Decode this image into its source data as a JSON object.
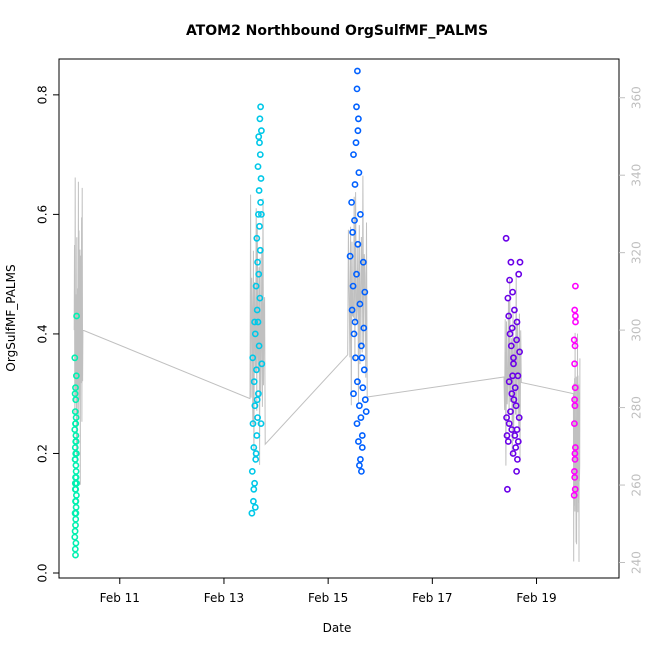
{
  "chart_data": {
    "type": "scatter",
    "title": "ATOM2 Northbound OrgSulfMF_PALMS",
    "xlabel": "Date",
    "ylabel": "OrgSulfMF_PALMS",
    "x_tick_labels": [
      "Feb 11",
      "Feb 13",
      "Feb 15",
      "Feb 17",
      "Feb 19"
    ],
    "x_tick_dates": [
      "2017-02-11",
      "2017-02-13",
      "2017-02-15",
      "2017-02-17",
      "2017-02-19"
    ],
    "xlim": [
      "2017-02-09T20:00",
      "2017-02-20T14:00"
    ],
    "ylim": [
      0,
      0.86
    ],
    "y_ticks": [
      0.0,
      0.2,
      0.4,
      0.6,
      0.8
    ],
    "y_tick_labels": [
      "0.0",
      "0.2",
      "0.4",
      "0.6",
      "0.8"
    ],
    "y2_ticks": [
      240,
      260,
      280,
      300,
      320,
      340,
      360
    ],
    "y2_tick_labels": [
      "240",
      "260",
      "280",
      "300",
      "320",
      "340",
      "360"
    ],
    "y2lim": [
      236,
      370
    ],
    "grid": false,
    "colors": {
      "line": "#c0c0c0",
      "right_axis": "#bfbfbf",
      "cluster_1": "#00ffa0",
      "cluster_2": "#00a0ff",
      "cluster_3": "#0040ff",
      "cluster_4": "#7000ff",
      "cluster_5": "#ff00ff"
    },
    "series": [
      {
        "color": "#00f0b0",
        "gradient_to": "#00ffa0",
        "x_range": [
          "2017-02-10T03:00",
          "2017-02-10T07:00"
        ],
        "points": [
          [
            0.03,
            0.06
          ],
          [
            0.07,
            0.09
          ],
          [
            0.04,
            0.1
          ],
          [
            0.08,
            0.12
          ],
          [
            0.05,
            0.14
          ],
          [
            0.06,
            0.16
          ],
          [
            0.09,
            0.17
          ],
          [
            0.04,
            0.19
          ],
          [
            0.1,
            0.2
          ],
          [
            0.05,
            0.21
          ],
          [
            0.07,
            0.22
          ],
          [
            0.08,
            0.23
          ],
          [
            0.03,
            0.24
          ],
          [
            0.06,
            0.25
          ],
          [
            0.09,
            0.26
          ],
          [
            0.05,
            0.27
          ],
          [
            0.07,
            0.29
          ],
          [
            0.04,
            0.3
          ],
          [
            0.06,
            0.31
          ],
          [
            0.1,
            0.33
          ],
          [
            0.03,
            0.36
          ],
          [
            0.11,
            0.43
          ],
          [
            0.08,
            0.05
          ],
          [
            0.06,
            0.08
          ],
          [
            0.1,
            0.13
          ],
          [
            0.05,
            0.15
          ],
          [
            0.08,
            0.18
          ],
          [
            0.07,
            0.2
          ],
          [
            0.09,
            0.11
          ],
          [
            0.04,
            0.07
          ],
          [
            0.06,
            0.03
          ],
          [
            0.05,
            0.04
          ],
          [
            0.11,
            0.15
          ],
          [
            0.07,
            0.14
          ],
          [
            0.09,
            0.22
          ],
          [
            0.06,
            0.12
          ],
          [
            0.08,
            0.1
          ],
          [
            0.05,
            0.19
          ],
          [
            0.07,
            0.25
          ],
          [
            0.09,
            0.16
          ]
        ]
      },
      {
        "color": "#00c8e8",
        "gradient_to": "#00a0ff",
        "x_range": [
          "2017-02-13T12:00",
          "2017-02-13T19:00"
        ],
        "points": [
          [
            0.05,
            0.1
          ],
          [
            0.09,
            0.12
          ],
          [
            0.12,
            0.15
          ],
          [
            0.06,
            0.17
          ],
          [
            0.15,
            0.19
          ],
          [
            0.1,
            0.21
          ],
          [
            0.18,
            0.23
          ],
          [
            0.08,
            0.25
          ],
          [
            0.2,
            0.26
          ],
          [
            0.13,
            0.28
          ],
          [
            0.22,
            0.3
          ],
          [
            0.11,
            0.32
          ],
          [
            0.17,
            0.34
          ],
          [
            0.07,
            0.36
          ],
          [
            0.24,
            0.38
          ],
          [
            0.14,
            0.4
          ],
          [
            0.21,
            0.42
          ],
          [
            0.19,
            0.44
          ],
          [
            0.26,
            0.46
          ],
          [
            0.16,
            0.48
          ],
          [
            0.23,
            0.5
          ],
          [
            0.2,
            0.52
          ],
          [
            0.27,
            0.54
          ],
          [
            0.18,
            0.56
          ],
          [
            0.25,
            0.58
          ],
          [
            0.22,
            0.6
          ],
          [
            0.28,
            0.62
          ],
          [
            0.24,
            0.64
          ],
          [
            0.29,
            0.66
          ],
          [
            0.21,
            0.68
          ],
          [
            0.27,
            0.7
          ],
          [
            0.25,
            0.72
          ],
          [
            0.3,
            0.74
          ],
          [
            0.26,
            0.76
          ],
          [
            0.28,
            0.78
          ],
          [
            0.23,
            0.73
          ],
          [
            0.3,
            0.6
          ],
          [
            0.31,
            0.35
          ],
          [
            0.29,
            0.25
          ],
          [
            0.1,
            0.14
          ],
          [
            0.14,
            0.11
          ],
          [
            0.16,
            0.2
          ],
          [
            0.19,
            0.29
          ],
          [
            0.12,
            0.42
          ]
        ]
      },
      {
        "color": "#0060ff",
        "gradient_to": "#0020e0",
        "x_range": [
          "2017-02-15T09:00",
          "2017-02-15T18:00"
        ],
        "points": [
          [
            0.05,
            0.53
          ],
          [
            0.08,
            0.62
          ],
          [
            0.1,
            0.57
          ],
          [
            0.12,
            0.7
          ],
          [
            0.15,
            0.65
          ],
          [
            0.18,
            0.78
          ],
          [
            0.2,
            0.84
          ],
          [
            0.22,
            0.76
          ],
          [
            0.17,
            0.72
          ],
          [
            0.14,
            0.59
          ],
          [
            0.11,
            0.48
          ],
          [
            0.09,
            0.44
          ],
          [
            0.13,
            0.4
          ],
          [
            0.16,
            0.36
          ],
          [
            0.2,
            0.32
          ],
          [
            0.24,
            0.28
          ],
          [
            0.19,
            0.25
          ],
          [
            0.22,
            0.22
          ],
          [
            0.26,
            0.19
          ],
          [
            0.28,
            0.17
          ],
          [
            0.3,
            0.21
          ],
          [
            0.27,
            0.26
          ],
          [
            0.31,
            0.31
          ],
          [
            0.29,
            0.36
          ],
          [
            0.33,
            0.41
          ],
          [
            0.35,
            0.47
          ],
          [
            0.32,
            0.52
          ],
          [
            0.36,
            0.29
          ],
          [
            0.3,
            0.23
          ],
          [
            0.34,
            0.34
          ],
          [
            0.25,
            0.45
          ],
          [
            0.21,
            0.55
          ],
          [
            0.18,
            0.5
          ],
          [
            0.23,
            0.67
          ],
          [
            0.19,
            0.81
          ],
          [
            0.21,
            0.74
          ],
          [
            0.26,
            0.6
          ],
          [
            0.28,
            0.38
          ],
          [
            0.15,
            0.42
          ],
          [
            0.12,
            0.3
          ],
          [
            0.38,
            0.27
          ],
          [
            0.24,
            0.18
          ]
        ]
      },
      {
        "color": "#6a00e8",
        "gradient_to": "#8000ff",
        "x_range": [
          "2017-02-18T09:00",
          "2017-02-18T17:00"
        ],
        "points": [
          [
            0.05,
            0.56
          ],
          [
            0.08,
            0.14
          ],
          [
            0.1,
            0.22
          ],
          [
            0.12,
            0.25
          ],
          [
            0.15,
            0.27
          ],
          [
            0.18,
            0.3
          ],
          [
            0.2,
            0.33
          ],
          [
            0.22,
            0.36
          ],
          [
            0.17,
            0.38
          ],
          [
            0.14,
            0.4
          ],
          [
            0.11,
            0.43
          ],
          [
            0.09,
            0.46
          ],
          [
            0.13,
            0.49
          ],
          [
            0.16,
            0.52
          ],
          [
            0.2,
            0.47
          ],
          [
            0.24,
            0.44
          ],
          [
            0.19,
            0.41
          ],
          [
            0.22,
            0.35
          ],
          [
            0.26,
            0.31
          ],
          [
            0.28,
            0.28
          ],
          [
            0.3,
            0.24
          ],
          [
            0.27,
            0.21
          ],
          [
            0.31,
            0.19
          ],
          [
            0.29,
            0.17
          ],
          [
            0.33,
            0.22
          ],
          [
            0.35,
            0.26
          ],
          [
            0.32,
            0.33
          ],
          [
            0.36,
            0.37
          ],
          [
            0.3,
            0.42
          ],
          [
            0.34,
            0.5
          ],
          [
            0.25,
            0.23
          ],
          [
            0.21,
            0.2
          ],
          [
            0.18,
            0.24
          ],
          [
            0.23,
            0.29
          ],
          [
            0.07,
            0.23
          ],
          [
            0.06,
            0.26
          ],
          [
            0.12,
            0.32
          ],
          [
            0.29,
            0.39
          ],
          [
            0.37,
            0.52
          ]
        ]
      },
      {
        "color": "#ff00ff",
        "gradient_to": "#d000f0",
        "x_range": [
          "2017-02-19T17:00",
          "2017-02-19T20:00"
        ],
        "points": [
          [
            0.05,
            0.13
          ],
          [
            0.08,
            0.16
          ],
          [
            0.1,
            0.19
          ],
          [
            0.12,
            0.21
          ],
          [
            0.06,
            0.25
          ],
          [
            0.09,
            0.28
          ],
          [
            0.11,
            0.31
          ],
          [
            0.07,
            0.35
          ],
          [
            0.1,
            0.38
          ],
          [
            0.13,
            0.42
          ],
          [
            0.08,
            0.44
          ],
          [
            0.12,
            0.48
          ],
          [
            0.06,
            0.17
          ],
          [
            0.09,
            0.2
          ],
          [
            0.11,
            0.14
          ],
          [
            0.07,
            0.29
          ],
          [
            0.12,
            0.43
          ],
          [
            0.05,
            0.39
          ]
        ]
      }
    ]
  }
}
